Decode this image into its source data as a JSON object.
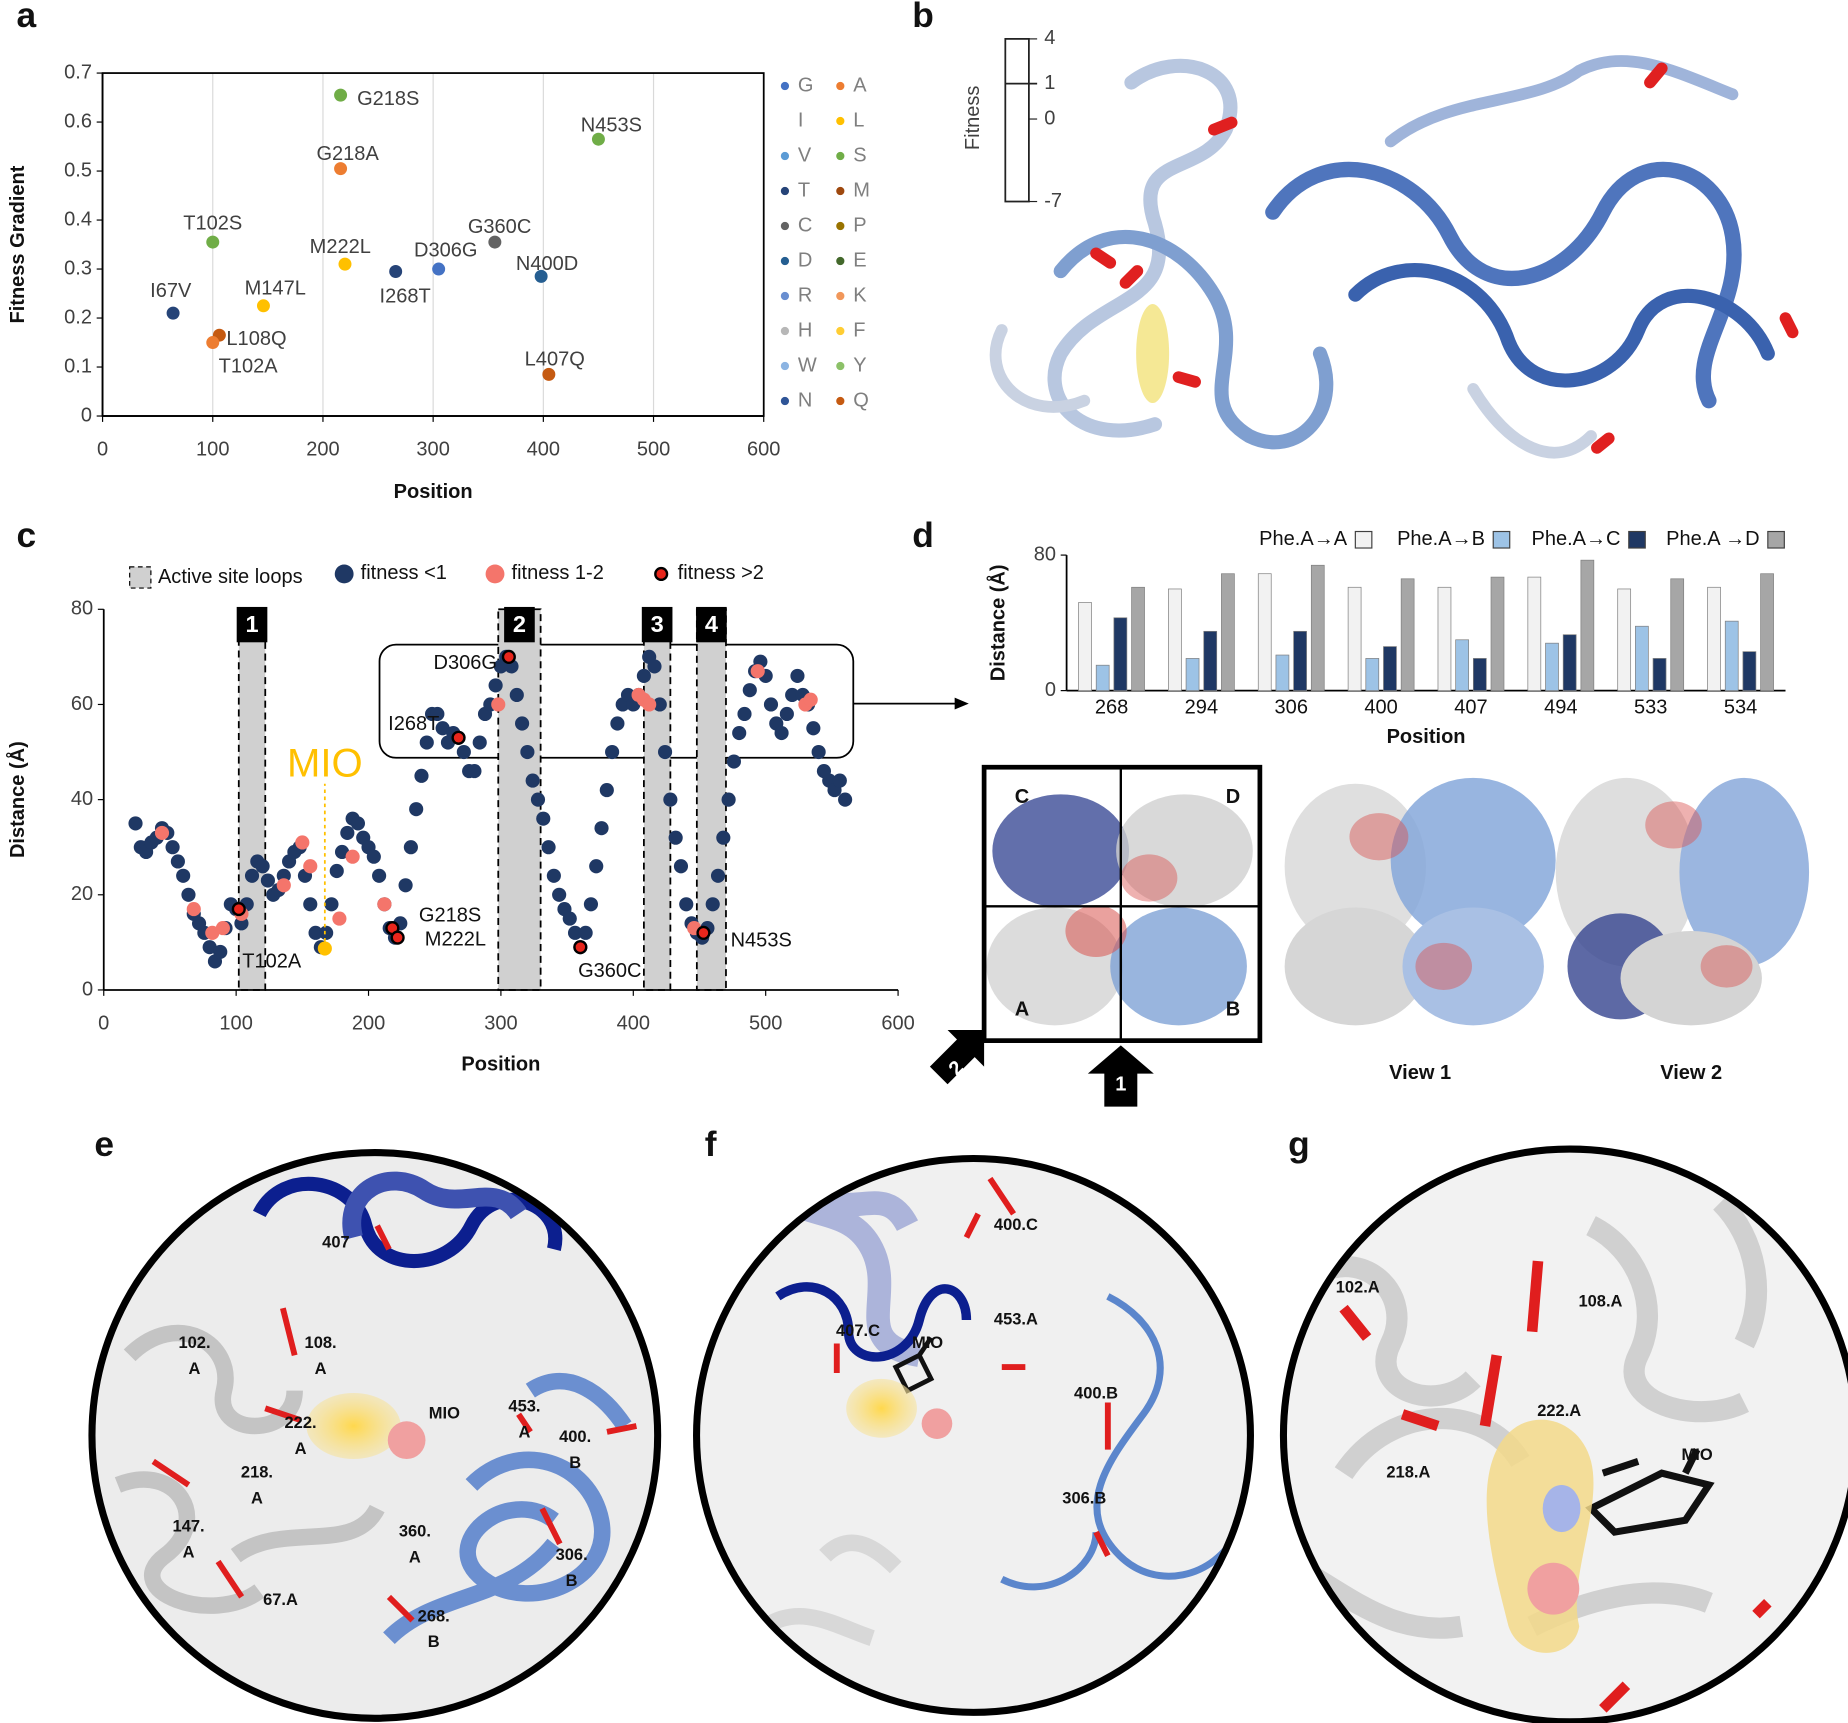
{
  "panel_letters": [
    "a",
    "b",
    "c",
    "d",
    "e",
    "f",
    "g"
  ],
  "chart_data": [
    {
      "type": "scatter",
      "xlabel": "Position",
      "ylabel": "Fitness Gradient",
      "xlim": [
        0,
        600
      ],
      "ylim": [
        0,
        0.7
      ],
      "xticks": [
        0,
        100,
        200,
        300,
        400,
        500,
        600
      ],
      "yticks": [
        0,
        0.1,
        0.2,
        0.3,
        0.4,
        0.5,
        0.6,
        0.7
      ],
      "grid": "x",
      "frame": true,
      "labels": [
        "I67V",
        "T102S",
        "L108Q",
        "T102A",
        "M147L",
        "G218S",
        "G218A",
        "M222L",
        "I268T",
        "D306G",
        "G360C",
        "N400D",
        "N453S",
        "L407Q"
      ],
      "x": [
        64,
        100,
        106,
        100,
        146,
        216,
        216,
        220,
        266,
        305,
        356,
        398,
        450,
        405
      ],
      "values": [
        0.21,
        0.355,
        0.165,
        0.15,
        0.225,
        0.655,
        0.505,
        0.31,
        0.295,
        0.3,
        0.355,
        0.285,
        0.565,
        0.085
      ],
      "colors": [
        "#264478",
        "#70ad47",
        "#c55a11",
        "#ed7d31",
        "#ffc000",
        "#70ad47",
        "#ed7d31",
        "#ffc000",
        "#264478",
        "#4472c4",
        "#636363",
        "#255e91",
        "#70ad47",
        "#c55a11"
      ],
      "legend": [
        {
          "name": "G",
          "color": "#4472c4"
        },
        {
          "name": "A",
          "color": "#ed7d31"
        },
        {
          "name": "I",
          "color": null
        },
        {
          "name": "L",
          "color": "#ffc000"
        },
        {
          "name": "V",
          "color": "#5b9bd5"
        },
        {
          "name": "S",
          "color": "#70ad47"
        },
        {
          "name": "T",
          "color": "#264478"
        },
        {
          "name": "M",
          "color": "#9e480e"
        },
        {
          "name": "C",
          "color": "#636363"
        },
        {
          "name": "P",
          "color": "#997300"
        },
        {
          "name": "D",
          "color": "#255e91"
        },
        {
          "name": "E",
          "color": "#43682b"
        },
        {
          "name": "R",
          "color": "#698ed0"
        },
        {
          "name": "K",
          "color": "#f1975a"
        },
        {
          "name": "H",
          "color": "#b7b7b7"
        },
        {
          "name": "F",
          "color": "#ffcd33"
        },
        {
          "name": "W",
          "color": "#8cb4e2"
        },
        {
          "name": "Y",
          "color": "#8cc168"
        },
        {
          "name": "N",
          "color": "#2f5597"
        },
        {
          "name": "Q",
          "color": "#c55a11"
        }
      ]
    },
    {
      "type": "scatter",
      "xlabel": "Position",
      "ylabel": "Distance (Å)",
      "xlim": [
        0,
        600
      ],
      "ylim": [
        0,
        80
      ],
      "xticks": [
        0,
        100,
        200,
        300,
        400,
        500,
        600
      ],
      "yticks": [
        0,
        20,
        40,
        60,
        80
      ],
      "regions_name": "Active site loops",
      "regions": [
        {
          "label": "1",
          "range": [
            102,
            122
          ]
        },
        {
          "label": "2",
          "range": [
            298,
            330
          ]
        },
        {
          "label": "3",
          "range": [
            408,
            428
          ]
        },
        {
          "label": "4",
          "range": [
            448,
            470
          ]
        }
      ],
      "series": [
        {
          "name": "fitness <1",
          "color": "#1f3864",
          "x": [
            24,
            28,
            32,
            36,
            40,
            44,
            48,
            52,
            56,
            60,
            64,
            68,
            72,
            76,
            80,
            84,
            88,
            92,
            96,
            100,
            104,
            108,
            112,
            116,
            120,
            124,
            128,
            132,
            136,
            140,
            144,
            148,
            152,
            156,
            160,
            164,
            168,
            172,
            176,
            180,
            184,
            188,
            192,
            196,
            200,
            204,
            208,
            212,
            216,
            220,
            224,
            228,
            232,
            236,
            240,
            244,
            248,
            252,
            256,
            260,
            264,
            268,
            272,
            276,
            280,
            284,
            288,
            292,
            296,
            300,
            304,
            308,
            312,
            316,
            320,
            324,
            328,
            332,
            336,
            340,
            344,
            348,
            352,
            356,
            360,
            364,
            368,
            372,
            376,
            380,
            384,
            388,
            392,
            396,
            400,
            404,
            408,
            412,
            416,
            420,
            424,
            428,
            432,
            436,
            440,
            444,
            448,
            452,
            456,
            460,
            464,
            468,
            472,
            476,
            480,
            484,
            488,
            492,
            496,
            500,
            504,
            508,
            512,
            516,
            520,
            524,
            528,
            532,
            536,
            540,
            544,
            548,
            552,
            556,
            560
          ],
          "values": [
            35,
            30,
            29,
            31,
            32,
            34,
            33,
            30,
            27,
            24,
            20,
            16,
            14,
            12,
            9,
            6,
            8,
            13,
            18,
            17,
            14,
            18,
            24,
            27,
            26,
            23,
            20,
            21,
            24,
            27,
            29,
            30,
            24,
            18,
            12,
            9,
            12,
            18,
            25,
            29,
            33,
            36,
            35,
            32,
            30,
            28,
            24,
            18,
            13,
            11,
            14,
            22,
            30,
            38,
            45,
            52,
            58,
            58,
            55,
            52,
            54,
            53,
            50,
            46,
            46,
            52,
            58,
            60,
            64,
            68,
            70,
            68,
            62,
            56,
            50,
            44,
            40,
            36,
            30,
            24,
            20,
            17,
            15,
            12,
            9,
            12,
            18,
            26,
            34,
            42,
            50,
            56,
            60,
            62,
            60,
            62,
            66,
            70,
            68,
            60,
            50,
            40,
            32,
            26,
            18,
            14,
            12,
            11,
            13,
            18,
            24,
            32,
            40,
            48,
            54,
            58,
            63,
            67,
            69,
            66,
            60,
            56,
            54,
            58,
            62,
            66,
            62,
            60,
            55,
            50,
            46,
            44,
            42,
            44,
            40
          ]
        },
        {
          "name": "fitness 1-2",
          "color": "#f4756b",
          "x": [
            44,
            68,
            82,
            90,
            104,
            136,
            150,
            156,
            178,
            188,
            212,
            298,
            404,
            408,
            412,
            446,
            494,
            530,
            534
          ],
          "values": [
            33,
            17,
            12,
            13,
            16,
            22,
            31,
            26,
            15,
            28,
            18,
            60,
            62,
            61,
            60,
            13,
            67,
            60,
            61
          ]
        },
        {
          "name": "fitness >2",
          "color": "#e8261c",
          "edgecolor": "#000000",
          "x": [
            102,
            218,
            222,
            268,
            306,
            360,
            453
          ],
          "values": [
            17,
            13,
            11,
            53,
            70,
            9,
            12
          ],
          "labels": [
            "T102A",
            "G218S",
            "M222L",
            "I268T",
            "D306G",
            "G360C",
            "N453S"
          ]
        }
      ],
      "annotations": [
        {
          "text": "MIO",
          "x": 167,
          "y": 8.7,
          "color": "#ffc000"
        }
      ]
    },
    {
      "type": "bar",
      "xlabel": "Position",
      "ylabel": "Distance (Å)",
      "categories": [
        "268",
        "294",
        "306",
        "400",
        "407",
        "494",
        "533",
        "534"
      ],
      "ylim": [
        0,
        80
      ],
      "yticks": [
        0,
        80
      ],
      "series": [
        {
          "name": "Phe.A→A",
          "color": "#f2f2f2",
          "values": [
            52,
            60,
            69,
            61,
            61,
            67,
            60,
            61
          ]
        },
        {
          "name": "Phe.A→B",
          "color": "#9dc3e6",
          "values": [
            15,
            19,
            21,
            19,
            30,
            28,
            38,
            41
          ]
        },
        {
          "name": "Phe.A→C",
          "color": "#1f3864",
          "values": [
            43,
            35,
            35,
            26,
            19,
            33,
            19,
            23
          ]
        },
        {
          "name": "Phe.A →D",
          "color": "#a6a6a6",
          "values": [
            61,
            69,
            74,
            66,
            67,
            77,
            66,
            69
          ]
        }
      ]
    }
  ],
  "fitness_scale": {
    "label": "Fitness",
    "ticks": [
      "4",
      "1",
      "0",
      "-7"
    ]
  },
  "subunits": {
    "labels": [
      "C",
      "D",
      "A",
      "B"
    ],
    "arrows": [
      "2",
      "1"
    ],
    "views": [
      "View 1",
      "View 2"
    ]
  },
  "zoom": {
    "e": [
      [
        "407"
      ],
      [
        "102.",
        "A"
      ],
      [
        "108.",
        "A"
      ],
      [
        "222.",
        "A"
      ],
      [
        "MIO"
      ],
      [
        "453.",
        "A"
      ],
      [
        "400.",
        "B"
      ],
      [
        "218.",
        "A"
      ],
      [
        "147.",
        "A"
      ],
      [
        "360.",
        "A"
      ],
      [
        "306.",
        "B"
      ],
      [
        "67.A"
      ],
      [
        "268.",
        "B"
      ]
    ],
    "f": [
      [
        "400.C"
      ],
      [
        "407.C"
      ],
      [
        "MIO"
      ],
      [
        "453.A"
      ],
      [
        "400.B"
      ],
      [
        "306.B"
      ]
    ],
    "g": [
      [
        "102.A"
      ],
      [
        "108.A"
      ],
      [
        "222.A"
      ],
      [
        "218.A"
      ],
      [
        "MIO"
      ]
    ]
  }
}
